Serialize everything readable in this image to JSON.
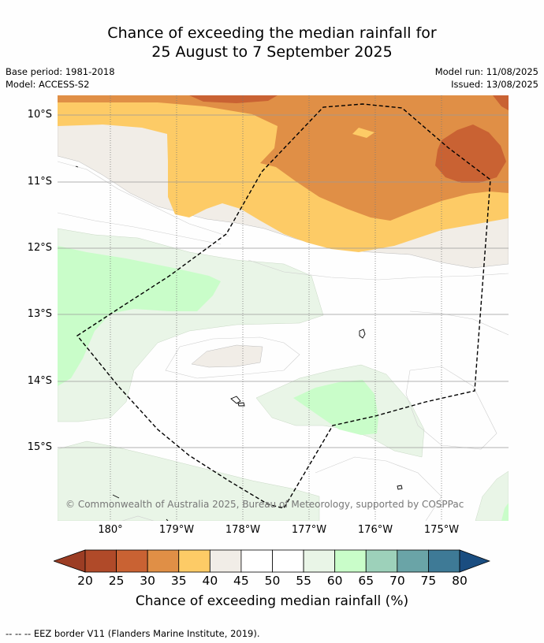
{
  "title_line1": "Chance of exceeding the median rainfall for",
  "title_line2": "25 August to 7 September 2025",
  "base_period": "Base period: 1981-2018",
  "model": "Model: ACCESS-S2",
  "model_run": "Model run: 11/08/2025",
  "issued": "Issued: 13/08/2025",
  "lat_labels": [
    "10°S",
    "11°S",
    "12°S",
    "13°S",
    "14°S",
    "15°S"
  ],
  "lon_labels": [
    "180°",
    "179°W",
    "178°W",
    "177°W",
    "176°W",
    "175°W"
  ],
  "copyright": "© Commonwealth of Australia 2025, Bureau of Meteorology, supported by COSPPac",
  "colorbar": {
    "ticks": [
      "20",
      "25",
      "30",
      "35",
      "40",
      "45",
      "50",
      "55",
      "60",
      "65",
      "70",
      "75",
      "80"
    ],
    "colors": [
      "#9c3d24",
      "#b04a29",
      "#c96233",
      "#e08f46",
      "#fdcb66",
      "#f1ede7",
      "#ffffff",
      "#ffffff",
      "#e9f5e7",
      "#c9fdc9",
      "#9dd1ba",
      "#6aa4a7",
      "#3e7a96",
      "#1a4d80"
    ],
    "label": "Chance of exceeding median rainfall (%)"
  },
  "footer": "--  --  -- EEZ border V11 (Flanders Marine Institute, 2019)."
}
